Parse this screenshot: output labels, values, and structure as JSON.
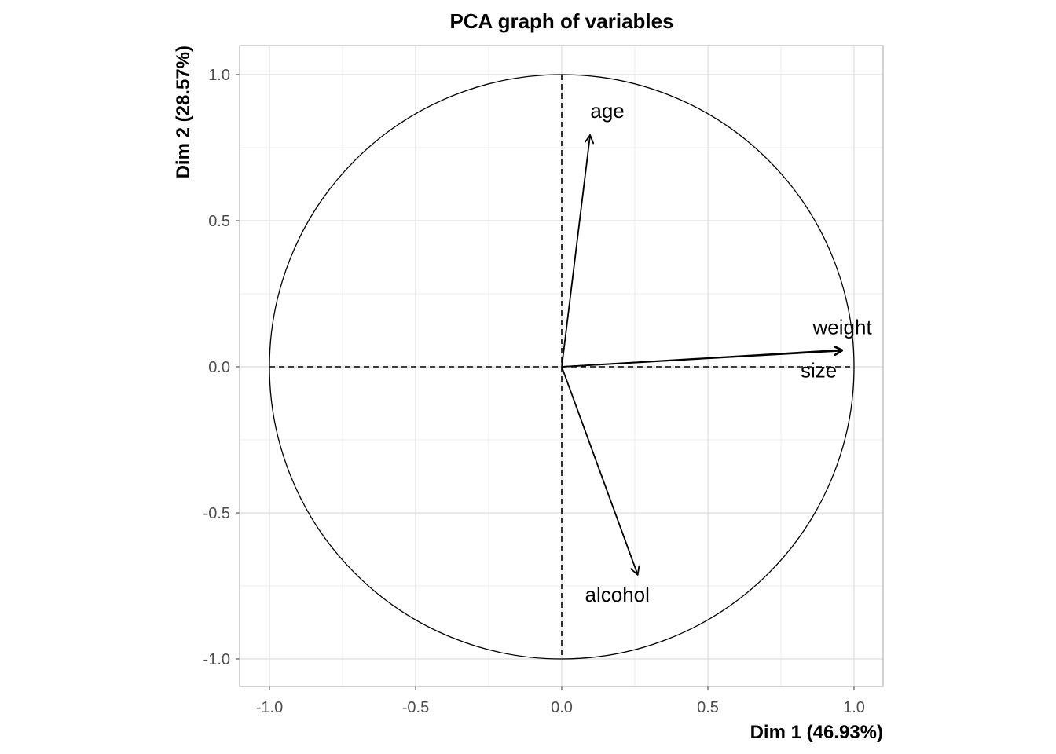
{
  "chart_data": {
    "type": "pca-correlation-circle",
    "title": "PCA graph of variables",
    "xlabel": "Dim 1 (46.93%)",
    "ylabel": "Dim 2 (28.57%)",
    "xlim": [
      -1.1,
      1.1
    ],
    "ylim": [
      -1.1,
      1.1
    ],
    "xticks": [
      -1.0,
      -0.5,
      0.0,
      0.5,
      1.0
    ],
    "yticks": [
      -1.0,
      -0.5,
      0.0,
      0.5,
      1.0
    ],
    "xtick_labels": [
      "-1.0",
      "-0.5",
      "0.0",
      "0.5",
      "1.0"
    ],
    "ytick_labels": [
      "-1.0",
      "-0.5",
      "0.0",
      "0.5",
      "1.0"
    ],
    "grid": true,
    "variables": [
      {
        "name": "age",
        "x": 0.097,
        "y": 0.793
      },
      {
        "name": "weight",
        "x": 0.96,
        "y": 0.058
      },
      {
        "name": "size",
        "x": 0.96,
        "y": 0.055
      },
      {
        "name": "alcohol",
        "x": 0.26,
        "y": -0.712
      }
    ],
    "colors": {
      "arrow": "#000000",
      "grid": "#dedede",
      "panel_border": "#b3b3b3"
    }
  }
}
